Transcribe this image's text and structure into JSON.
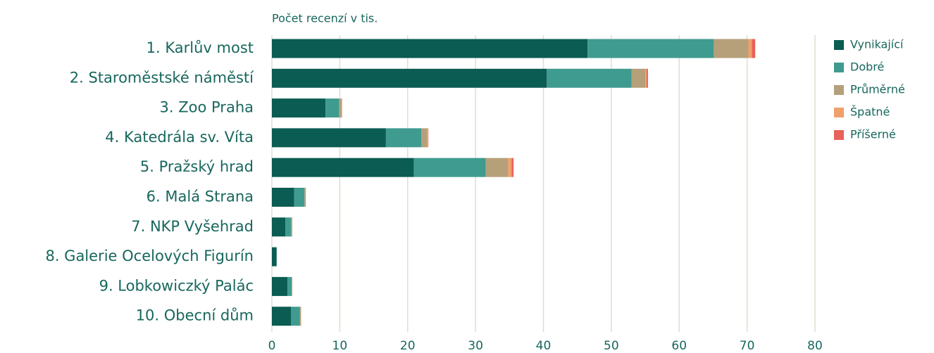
{
  "chart_data": {
    "type": "bar",
    "orientation": "horizontal",
    "stacked": true,
    "x_label": "Počet recenzí v tis.",
    "categories": [
      "1. Karlův most",
      "2. Staroměstské náměstí",
      "3. Zoo Praha",
      "4. Katedrála sv. Víta",
      "5. Pražský hrad",
      "6. Malá Strana",
      "7. NKP Vyšehrad",
      "8. Galerie Ocelových Figurín",
      "9. Lobkowiczký Palác",
      "10. Obecní dům"
    ],
    "series": [
      {
        "name": "Vynikající",
        "color": "#0b5c52",
        "values": [
          46.5,
          40.5,
          7.9,
          16.8,
          20.9,
          3.3,
          2.0,
          0.7,
          2.3,
          2.8
        ]
      },
      {
        "name": "Dobré",
        "color": "#3f9b8f",
        "values": [
          18.6,
          12.5,
          2.0,
          5.2,
          10.6,
          1.5,
          0.8,
          0,
          0.6,
          1.3
        ]
      },
      {
        "name": "Průměrné",
        "color": "#b5a07a",
        "values": [
          5.1,
          2.0,
          0.4,
          0.9,
          3.3,
          0.2,
          0.2,
          0,
          0.1,
          0.2
        ]
      },
      {
        "name": "Špatné",
        "color": "#f0a06a",
        "values": [
          0.5,
          0.2,
          0.05,
          0.1,
          0.5,
          0,
          0,
          0,
          0,
          0
        ]
      },
      {
        "name": "Příšerné",
        "color": "#e8625a",
        "values": [
          0.5,
          0.2,
          0,
          0.05,
          0.3,
          0,
          0,
          0,
          0,
          0
        ]
      }
    ],
    "xlim": [
      0,
      80
    ],
    "xticks": [
      0,
      10,
      20,
      30,
      40,
      50,
      60,
      70,
      80
    ],
    "grid": true
  }
}
